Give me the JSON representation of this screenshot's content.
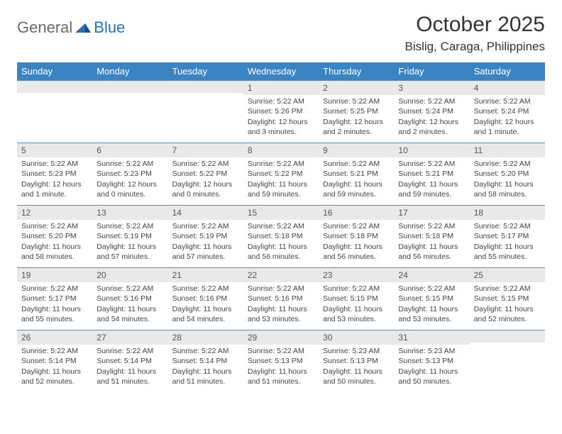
{
  "logo": {
    "part1": "General",
    "part2": "Blue"
  },
  "title": "October 2025",
  "location": "Bislig, Caraga, Philippines",
  "colors": {
    "header_bg": "#3b84c4",
    "header_text": "#ffffff",
    "daynum_bg": "#e9e9e9",
    "daynum_border": "#6a89a6",
    "logo_gray": "#6a6a6a",
    "logo_blue": "#2f6fb0",
    "body_text": "#444444"
  },
  "weekdays": [
    "Sunday",
    "Monday",
    "Tuesday",
    "Wednesday",
    "Thursday",
    "Friday",
    "Saturday"
  ],
  "weeks": [
    [
      {
        "n": "",
        "sr": "",
        "ss": "",
        "dl": ""
      },
      {
        "n": "",
        "sr": "",
        "ss": "",
        "dl": ""
      },
      {
        "n": "",
        "sr": "",
        "ss": "",
        "dl": ""
      },
      {
        "n": "1",
        "sr": "Sunrise: 5:22 AM",
        "ss": "Sunset: 5:26 PM",
        "dl": "Daylight: 12 hours and 3 minutes."
      },
      {
        "n": "2",
        "sr": "Sunrise: 5:22 AM",
        "ss": "Sunset: 5:25 PM",
        "dl": "Daylight: 12 hours and 2 minutes."
      },
      {
        "n": "3",
        "sr": "Sunrise: 5:22 AM",
        "ss": "Sunset: 5:24 PM",
        "dl": "Daylight: 12 hours and 2 minutes."
      },
      {
        "n": "4",
        "sr": "Sunrise: 5:22 AM",
        "ss": "Sunset: 5:24 PM",
        "dl": "Daylight: 12 hours and 1 minute."
      }
    ],
    [
      {
        "n": "5",
        "sr": "Sunrise: 5:22 AM",
        "ss": "Sunset: 5:23 PM",
        "dl": "Daylight: 12 hours and 1 minute."
      },
      {
        "n": "6",
        "sr": "Sunrise: 5:22 AM",
        "ss": "Sunset: 5:23 PM",
        "dl": "Daylight: 12 hours and 0 minutes."
      },
      {
        "n": "7",
        "sr": "Sunrise: 5:22 AM",
        "ss": "Sunset: 5:22 PM",
        "dl": "Daylight: 12 hours and 0 minutes."
      },
      {
        "n": "8",
        "sr": "Sunrise: 5:22 AM",
        "ss": "Sunset: 5:22 PM",
        "dl": "Daylight: 11 hours and 59 minutes."
      },
      {
        "n": "9",
        "sr": "Sunrise: 5:22 AM",
        "ss": "Sunset: 5:21 PM",
        "dl": "Daylight: 11 hours and 59 minutes."
      },
      {
        "n": "10",
        "sr": "Sunrise: 5:22 AM",
        "ss": "Sunset: 5:21 PM",
        "dl": "Daylight: 11 hours and 59 minutes."
      },
      {
        "n": "11",
        "sr": "Sunrise: 5:22 AM",
        "ss": "Sunset: 5:20 PM",
        "dl": "Daylight: 11 hours and 58 minutes."
      }
    ],
    [
      {
        "n": "12",
        "sr": "Sunrise: 5:22 AM",
        "ss": "Sunset: 5:20 PM",
        "dl": "Daylight: 11 hours and 58 minutes."
      },
      {
        "n": "13",
        "sr": "Sunrise: 5:22 AM",
        "ss": "Sunset: 5:19 PM",
        "dl": "Daylight: 11 hours and 57 minutes."
      },
      {
        "n": "14",
        "sr": "Sunrise: 5:22 AM",
        "ss": "Sunset: 5:19 PM",
        "dl": "Daylight: 11 hours and 57 minutes."
      },
      {
        "n": "15",
        "sr": "Sunrise: 5:22 AM",
        "ss": "Sunset: 5:18 PM",
        "dl": "Daylight: 11 hours and 56 minutes."
      },
      {
        "n": "16",
        "sr": "Sunrise: 5:22 AM",
        "ss": "Sunset: 5:18 PM",
        "dl": "Daylight: 11 hours and 56 minutes."
      },
      {
        "n": "17",
        "sr": "Sunrise: 5:22 AM",
        "ss": "Sunset: 5:18 PM",
        "dl": "Daylight: 11 hours and 56 minutes."
      },
      {
        "n": "18",
        "sr": "Sunrise: 5:22 AM",
        "ss": "Sunset: 5:17 PM",
        "dl": "Daylight: 11 hours and 55 minutes."
      }
    ],
    [
      {
        "n": "19",
        "sr": "Sunrise: 5:22 AM",
        "ss": "Sunset: 5:17 PM",
        "dl": "Daylight: 11 hours and 55 minutes."
      },
      {
        "n": "20",
        "sr": "Sunrise: 5:22 AM",
        "ss": "Sunset: 5:16 PM",
        "dl": "Daylight: 11 hours and 54 minutes."
      },
      {
        "n": "21",
        "sr": "Sunrise: 5:22 AM",
        "ss": "Sunset: 5:16 PM",
        "dl": "Daylight: 11 hours and 54 minutes."
      },
      {
        "n": "22",
        "sr": "Sunrise: 5:22 AM",
        "ss": "Sunset: 5:16 PM",
        "dl": "Daylight: 11 hours and 53 minutes."
      },
      {
        "n": "23",
        "sr": "Sunrise: 5:22 AM",
        "ss": "Sunset: 5:15 PM",
        "dl": "Daylight: 11 hours and 53 minutes."
      },
      {
        "n": "24",
        "sr": "Sunrise: 5:22 AM",
        "ss": "Sunset: 5:15 PM",
        "dl": "Daylight: 11 hours and 53 minutes."
      },
      {
        "n": "25",
        "sr": "Sunrise: 5:22 AM",
        "ss": "Sunset: 5:15 PM",
        "dl": "Daylight: 11 hours and 52 minutes."
      }
    ],
    [
      {
        "n": "26",
        "sr": "Sunrise: 5:22 AM",
        "ss": "Sunset: 5:14 PM",
        "dl": "Daylight: 11 hours and 52 minutes."
      },
      {
        "n": "27",
        "sr": "Sunrise: 5:22 AM",
        "ss": "Sunset: 5:14 PM",
        "dl": "Daylight: 11 hours and 51 minutes."
      },
      {
        "n": "28",
        "sr": "Sunrise: 5:22 AM",
        "ss": "Sunset: 5:14 PM",
        "dl": "Daylight: 11 hours and 51 minutes."
      },
      {
        "n": "29",
        "sr": "Sunrise: 5:22 AM",
        "ss": "Sunset: 5:13 PM",
        "dl": "Daylight: 11 hours and 51 minutes."
      },
      {
        "n": "30",
        "sr": "Sunrise: 5:23 AM",
        "ss": "Sunset: 5:13 PM",
        "dl": "Daylight: 11 hours and 50 minutes."
      },
      {
        "n": "31",
        "sr": "Sunrise: 5:23 AM",
        "ss": "Sunset: 5:13 PM",
        "dl": "Daylight: 11 hours and 50 minutes."
      },
      {
        "n": "",
        "sr": "",
        "ss": "",
        "dl": ""
      }
    ]
  ]
}
